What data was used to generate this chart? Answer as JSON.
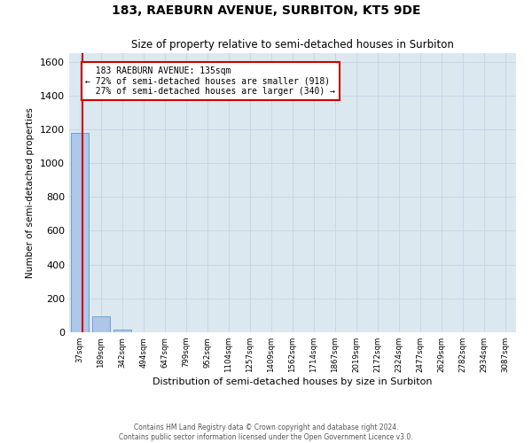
{
  "title": "183, RAEBURN AVENUE, SURBITON, KT5 9DE",
  "subtitle": "Size of property relative to semi-detached houses in Surbiton",
  "xlabel": "Distribution of semi-detached houses by size in Surbiton",
  "ylabel": "Number of semi-detached properties",
  "categories": [
    "37sqm",
    "189sqm",
    "342sqm",
    "494sqm",
    "647sqm",
    "799sqm",
    "952sqm",
    "1104sqm",
    "1257sqm",
    "1409sqm",
    "1562sqm",
    "1714sqm",
    "1867sqm",
    "2019sqm",
    "2172sqm",
    "2324sqm",
    "2477sqm",
    "2629sqm",
    "2782sqm",
    "2934sqm",
    "3087sqm"
  ],
  "bar_values": [
    1180,
    95,
    18,
    0,
    0,
    0,
    0,
    0,
    0,
    0,
    0,
    0,
    0,
    0,
    0,
    0,
    0,
    0,
    0,
    0,
    0
  ],
  "bar_color": "#aec6e8",
  "bar_edge_color": "#5a9fd4",
  "property_label": "183 RAEBURN AVENUE: 135sqm",
  "pct_smaller": 72,
  "pct_smaller_count": 918,
  "pct_larger": 27,
  "pct_larger_count": 340,
  "ylim": [
    0,
    1650
  ],
  "yticks": [
    0,
    200,
    400,
    600,
    800,
    1000,
    1200,
    1400,
    1600
  ],
  "annotation_box_color": "#ffffff",
  "annotation_box_edge": "#cc0000",
  "marker_line_color": "#cc0000",
  "grid_color": "#c8d8e8",
  "background_color": "#dce8f0",
  "footer_line1": "Contains HM Land Registry data © Crown copyright and database right 2024.",
  "footer_line2": "Contains public sector information licensed under the Open Government Licence v3.0."
}
